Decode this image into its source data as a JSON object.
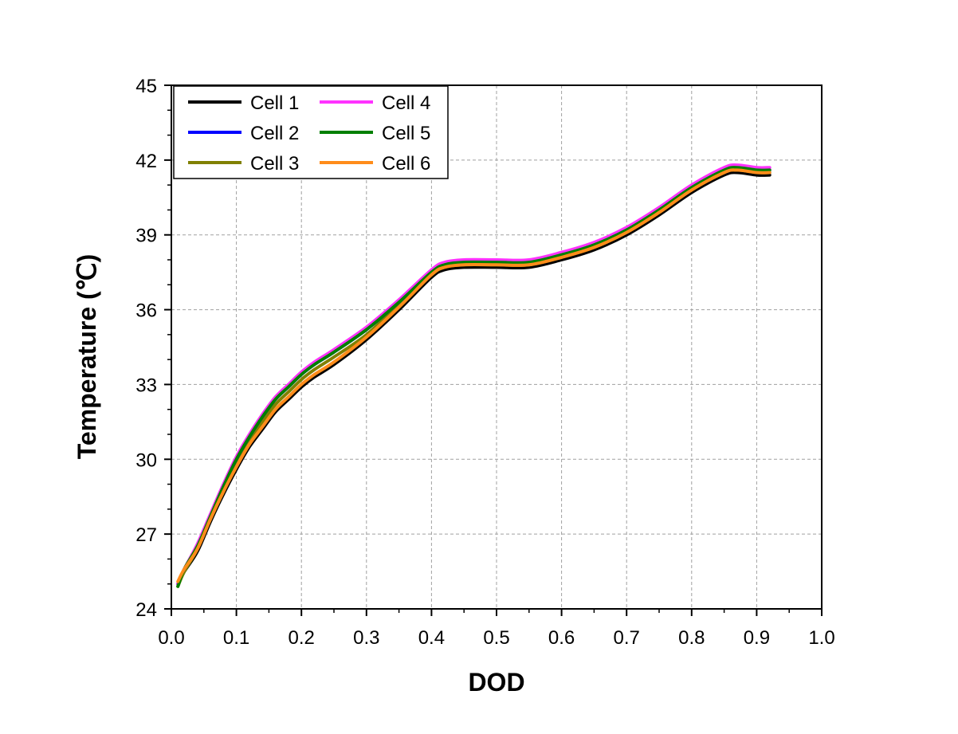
{
  "chart_data": {
    "type": "line",
    "title": "",
    "xlabel": "DOD",
    "ylabel": "Temperature (℃)",
    "xlim": [
      0.0,
      1.0
    ],
    "ylim": [
      24,
      45
    ],
    "xticks": [
      "0.0",
      "0.1",
      "0.2",
      "0.3",
      "0.4",
      "0.5",
      "0.6",
      "0.7",
      "0.8",
      "0.9",
      "1.0"
    ],
    "yticks": [
      "24",
      "27",
      "30",
      "33",
      "36",
      "39",
      "42",
      "45"
    ],
    "grid": true,
    "legend_position": "top-left",
    "series": [
      {
        "name": "Cell 1",
        "color": "#000000",
        "x": [
          0.01,
          0.02,
          0.04,
          0.06,
          0.08,
          0.1,
          0.12,
          0.14,
          0.16,
          0.18,
          0.2,
          0.22,
          0.25,
          0.3,
          0.35,
          0.4,
          0.42,
          0.45,
          0.5,
          0.55,
          0.6,
          0.65,
          0.7,
          0.75,
          0.8,
          0.85,
          0.87,
          0.9,
          0.92
        ],
        "y": [
          25.0,
          25.5,
          26.3,
          27.5,
          28.6,
          29.6,
          30.5,
          31.2,
          31.9,
          32.4,
          32.9,
          33.3,
          33.8,
          34.8,
          36.0,
          37.3,
          37.6,
          37.7,
          37.7,
          37.7,
          38.0,
          38.4,
          39.0,
          39.8,
          40.7,
          41.4,
          41.5,
          41.4,
          41.4
        ]
      },
      {
        "name": "Cell 2",
        "color": "#0000ff",
        "x": [
          0.01,
          0.02,
          0.04,
          0.06,
          0.08,
          0.1,
          0.12,
          0.14,
          0.16,
          0.18,
          0.2,
          0.22,
          0.25,
          0.3,
          0.35,
          0.4,
          0.42,
          0.45,
          0.5,
          0.55,
          0.6,
          0.65,
          0.7,
          0.75,
          0.8,
          0.85,
          0.87,
          0.9,
          0.92
        ],
        "y": [
          25.0,
          25.6,
          26.5,
          27.7,
          28.9,
          30.0,
          30.9,
          31.7,
          32.4,
          32.9,
          33.4,
          33.8,
          34.3,
          35.2,
          36.3,
          37.5,
          37.8,
          37.9,
          37.9,
          37.9,
          38.2,
          38.6,
          39.2,
          40.0,
          40.9,
          41.6,
          41.7,
          41.6,
          41.6
        ]
      },
      {
        "name": "Cell 3",
        "color": "#808000",
        "x": [
          0.01,
          0.02,
          0.04,
          0.06,
          0.08,
          0.1,
          0.12,
          0.14,
          0.16,
          0.18,
          0.2,
          0.22,
          0.25,
          0.3,
          0.35,
          0.4,
          0.42,
          0.45,
          0.5,
          0.55,
          0.6,
          0.65,
          0.7,
          0.75,
          0.8,
          0.85,
          0.87,
          0.9,
          0.92
        ],
        "y": [
          24.9,
          25.5,
          26.4,
          27.6,
          28.7,
          29.8,
          30.7,
          31.5,
          32.2,
          32.7,
          33.2,
          33.6,
          34.1,
          35.0,
          36.2,
          37.4,
          37.7,
          37.8,
          37.8,
          37.8,
          38.1,
          38.5,
          39.1,
          39.9,
          40.8,
          41.5,
          41.6,
          41.5,
          41.5
        ]
      },
      {
        "name": "Cell 4",
        "color": "#ff33ff",
        "x": [
          0.01,
          0.02,
          0.04,
          0.06,
          0.08,
          0.1,
          0.12,
          0.14,
          0.16,
          0.18,
          0.2,
          0.22,
          0.25,
          0.3,
          0.35,
          0.4,
          0.42,
          0.45,
          0.5,
          0.55,
          0.6,
          0.65,
          0.7,
          0.75,
          0.8,
          0.85,
          0.87,
          0.9,
          0.92
        ],
        "y": [
          25.0,
          25.6,
          26.6,
          27.8,
          29.0,
          30.1,
          31.0,
          31.8,
          32.5,
          33.0,
          33.5,
          33.9,
          34.4,
          35.3,
          36.4,
          37.6,
          37.9,
          38.0,
          38.0,
          38.0,
          38.3,
          38.7,
          39.3,
          40.1,
          41.0,
          41.7,
          41.8,
          41.7,
          41.7
        ]
      },
      {
        "name": "Cell 5",
        "color": "#007f00",
        "x": [
          0.01,
          0.02,
          0.04,
          0.06,
          0.08,
          0.1,
          0.12,
          0.14,
          0.16,
          0.18,
          0.2,
          0.22,
          0.25,
          0.3,
          0.35,
          0.4,
          0.42,
          0.45,
          0.5,
          0.55,
          0.6,
          0.65,
          0.7,
          0.75,
          0.8,
          0.85,
          0.87,
          0.9,
          0.92
        ],
        "y": [
          24.9,
          25.6,
          26.5,
          27.7,
          28.9,
          30.0,
          30.9,
          31.7,
          32.4,
          32.9,
          33.4,
          33.8,
          34.3,
          35.2,
          36.3,
          37.5,
          37.8,
          37.9,
          37.9,
          37.9,
          38.2,
          38.6,
          39.2,
          40.0,
          40.9,
          41.6,
          41.7,
          41.6,
          41.6
        ]
      },
      {
        "name": "Cell 6",
        "color": "#ff8c1a",
        "x": [
          0.01,
          0.02,
          0.04,
          0.06,
          0.08,
          0.1,
          0.12,
          0.14,
          0.16,
          0.18,
          0.2,
          0.22,
          0.25,
          0.3,
          0.35,
          0.4,
          0.42,
          0.45,
          0.5,
          0.55,
          0.6,
          0.65,
          0.7,
          0.75,
          0.8,
          0.85,
          0.87,
          0.9,
          0.92
        ],
        "y": [
          25.1,
          25.6,
          26.4,
          27.6,
          28.7,
          29.7,
          30.6,
          31.3,
          32.0,
          32.5,
          33.0,
          33.4,
          33.9,
          34.9,
          36.1,
          37.4,
          37.7,
          37.8,
          37.8,
          37.8,
          38.1,
          38.5,
          39.1,
          39.9,
          40.8,
          41.5,
          41.6,
          41.5,
          41.5
        ]
      }
    ]
  }
}
